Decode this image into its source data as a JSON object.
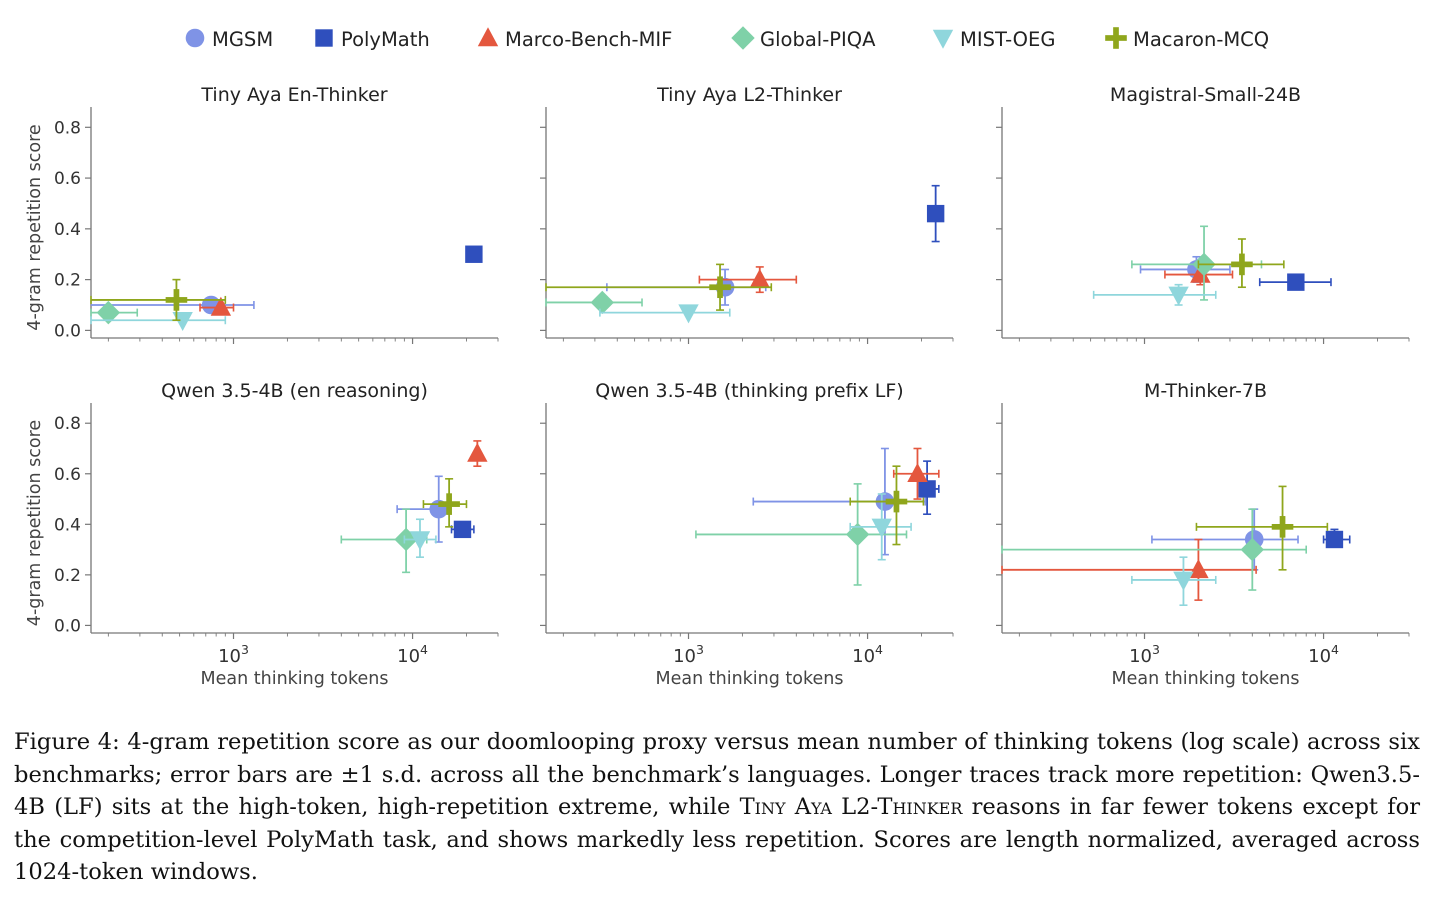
{
  "figure": {
    "legend": [
      {
        "name": "MGSM",
        "color": "#7f93e6",
        "marker": "circle"
      },
      {
        "name": "PolyMath",
        "color": "#2f4fbd",
        "marker": "square"
      },
      {
        "name": "Marco-Bench-MIF",
        "color": "#e4573e",
        "marker": "triangle-up"
      },
      {
        "name": "Global-PIQA",
        "color": "#7fd1a8",
        "marker": "diamond"
      },
      {
        "name": "MIST-OEG",
        "color": "#8fd6dc",
        "marker": "triangle-down"
      },
      {
        "name": "Macaron-MCQ",
        "color": "#8fa61c",
        "marker": "plus"
      }
    ],
    "caption": {
      "lead": "Figure 4: 4-gram repetition score as our doomlooping proxy versus mean number of thinking tokens (log scale) across six benchmarks; error bars are ±1 s.d. across all the benchmark’s languages. Longer traces track more repetition: Qwen3.5-4B (LF) sits at the high-token, high-repetition extreme, while ",
      "model": "Tiny Aya L2-Thinker",
      "tail": " reasons in far fewer tokens except for the competition-level PolyMath task, and shows markedly less repetition. Scores are length normalized, averaged across 1024-token windows."
    }
  },
  "chart_data": [
    {
      "type": "scatter",
      "title": "Tiny Aya En-Thinker",
      "xlabel": "",
      "ylabel": "4-gram repetition score",
      "xscale": "log",
      "xlim": [
        160,
        30000
      ],
      "ylim": [
        -0.03,
        0.88
      ],
      "xticks": [],
      "yticks": [
        0.0,
        0.2,
        0.4,
        0.6,
        0.8
      ],
      "series": [
        {
          "name": "MGSM",
          "x": 750,
          "y": 0.1,
          "xerr": [
            120,
            1300
          ],
          "yerr": [
            0.08,
            0.13
          ]
        },
        {
          "name": "PolyMath",
          "x": 22000,
          "y": 0.3,
          "xerr": null,
          "yerr": null
        },
        {
          "name": "Marco-Bench-MIF",
          "x": 850,
          "y": 0.09,
          "xerr": [
            650,
            1000
          ],
          "yerr": null
        },
        {
          "name": "Global-PIQA",
          "x": 200,
          "y": 0.07,
          "xerr": [
            160,
            290
          ],
          "yerr": null
        },
        {
          "name": "MIST-OEG",
          "x": 520,
          "y": 0.04,
          "xerr": [
            160,
            900
          ],
          "yerr": null
        },
        {
          "name": "Macaron-MCQ",
          "x": 480,
          "y": 0.12,
          "xerr": [
            160,
            900
          ],
          "yerr": [
            0.04,
            0.2
          ]
        }
      ]
    },
    {
      "type": "scatter",
      "title": "Tiny Aya L2-Thinker",
      "xlabel": "",
      "ylabel": "",
      "xscale": "log",
      "xlim": [
        160,
        30000
      ],
      "ylim": [
        -0.03,
        0.88
      ],
      "xticks": [],
      "yticks": [],
      "series": [
        {
          "name": "MGSM",
          "x": 1600,
          "y": 0.17,
          "xerr": [
            350,
            2700
          ],
          "yerr": [
            0.1,
            0.24
          ]
        },
        {
          "name": "PolyMath",
          "x": 24000,
          "y": 0.46,
          "xerr": [
            23000,
            25000
          ],
          "yerr": [
            0.35,
            0.57
          ]
        },
        {
          "name": "Marco-Bench-MIF",
          "x": 2500,
          "y": 0.2,
          "xerr": [
            1150,
            4000
          ],
          "yerr": [
            0.15,
            0.25
          ]
        },
        {
          "name": "Global-PIQA",
          "x": 330,
          "y": 0.11,
          "xerr": [
            160,
            550
          ],
          "yerr": null
        },
        {
          "name": "MIST-OEG",
          "x": 1000,
          "y": 0.07,
          "xerr": [
            320,
            1700
          ],
          "yerr": null
        },
        {
          "name": "Macaron-MCQ",
          "x": 1500,
          "y": 0.17,
          "xerr": [
            160,
            2900
          ],
          "yerr": [
            0.08,
            0.26
          ]
        }
      ]
    },
    {
      "type": "scatter",
      "title": "Magistral-Small-24B",
      "xlabel": "",
      "ylabel": "",
      "xscale": "log",
      "xlim": [
        160,
        30000
      ],
      "ylim": [
        -0.03,
        0.88
      ],
      "xticks": [],
      "yticks": [],
      "series": [
        {
          "name": "MGSM",
          "x": 1950,
          "y": 0.24,
          "xerr": [
            950,
            3000
          ],
          "yerr": [
            0.19,
            0.29
          ]
        },
        {
          "name": "PolyMath",
          "x": 7000,
          "y": 0.19,
          "xerr": [
            4400,
            11000
          ],
          "yerr": null
        },
        {
          "name": "Marco-Bench-MIF",
          "x": 2050,
          "y": 0.22,
          "xerr": [
            1300,
            3100
          ],
          "yerr": [
            0.18,
            0.26
          ]
        },
        {
          "name": "Global-PIQA",
          "x": 2150,
          "y": 0.26,
          "xerr": [
            850,
            4500
          ],
          "yerr": [
            0.12,
            0.41
          ]
        },
        {
          "name": "MIST-OEG",
          "x": 1550,
          "y": 0.14,
          "xerr": [
            520,
            2500
          ],
          "yerr": [
            0.1,
            0.18
          ]
        },
        {
          "name": "Macaron-MCQ",
          "x": 3500,
          "y": 0.26,
          "xerr": [
            2000,
            6000
          ],
          "yerr": [
            0.17,
            0.36
          ]
        }
      ]
    },
    {
      "type": "scatter",
      "title": "Qwen 3.5-4B (en reasoning)",
      "xlabel": "Mean thinking tokens",
      "ylabel": "4-gram repetition score",
      "xscale": "log",
      "xlim": [
        160,
        30000
      ],
      "ylim": [
        -0.03,
        0.88
      ],
      "xticks": [
        "10^3",
        "10^4"
      ],
      "yticks": [
        0.0,
        0.2,
        0.4,
        0.6,
        0.8
      ],
      "series": [
        {
          "name": "MGSM",
          "x": 14000,
          "y": 0.46,
          "xerr": [
            8200,
            16000
          ],
          "yerr": [
            0.33,
            0.59
          ]
        },
        {
          "name": "PolyMath",
          "x": 19000,
          "y": 0.38,
          "xerr": [
            16500,
            22000
          ],
          "yerr": null
        },
        {
          "name": "Marco-Bench-MIF",
          "x": 23000,
          "y": 0.68,
          "xerr": null,
          "yerr": [
            0.63,
            0.73
          ]
        },
        {
          "name": "Global-PIQA",
          "x": 9200,
          "y": 0.34,
          "xerr": [
            4000,
            12000
          ],
          "yerr": [
            0.21,
            0.46
          ]
        },
        {
          "name": "MIST-OEG",
          "x": 11000,
          "y": 0.34,
          "xerr": [
            9000,
            13500
          ],
          "yerr": [
            0.27,
            0.42
          ]
        },
        {
          "name": "Macaron-MCQ",
          "x": 16000,
          "y": 0.48,
          "xerr": [
            11500,
            20000
          ],
          "yerr": [
            0.39,
            0.58
          ]
        }
      ]
    },
    {
      "type": "scatter",
      "title": "Qwen 3.5-4B (thinking prefix LF)",
      "xlabel": "Mean thinking tokens",
      "ylabel": "",
      "xscale": "log",
      "xlim": [
        160,
        30000
      ],
      "ylim": [
        -0.03,
        0.88
      ],
      "xticks": [
        "10^3",
        "10^4"
      ],
      "yticks": [],
      "series": [
        {
          "name": "MGSM",
          "x": 12500,
          "y": 0.49,
          "xerr": [
            2300,
            21000
          ],
          "yerr": [
            0.28,
            0.7
          ]
        },
        {
          "name": "PolyMath",
          "x": 21500,
          "y": 0.54,
          "xerr": [
            19500,
            25000
          ],
          "yerr": [
            0.44,
            0.65
          ]
        },
        {
          "name": "Marco-Bench-MIF",
          "x": 19000,
          "y": 0.6,
          "xerr": [
            14000,
            25000
          ],
          "yerr": [
            0.5,
            0.7
          ]
        },
        {
          "name": "Global-PIQA",
          "x": 8800,
          "y": 0.36,
          "xerr": [
            1100,
            16500
          ],
          "yerr": [
            0.16,
            0.56
          ]
        },
        {
          "name": "MIST-OEG",
          "x": 12000,
          "y": 0.39,
          "xerr": [
            8000,
            17500
          ],
          "yerr": [
            0.26,
            0.52
          ]
        },
        {
          "name": "Macaron-MCQ",
          "x": 14500,
          "y": 0.49,
          "xerr": [
            8000,
            20500
          ],
          "yerr": [
            0.32,
            0.63
          ]
        }
      ]
    },
    {
      "type": "scatter",
      "title": "M-Thinker-7B",
      "xlabel": "Mean thinking tokens",
      "ylabel": "",
      "xscale": "log",
      "xlim": [
        160,
        30000
      ],
      "ylim": [
        -0.03,
        0.88
      ],
      "xticks": [
        "10^3",
        "10^4"
      ],
      "yticks": [],
      "series": [
        {
          "name": "MGSM",
          "x": 4100,
          "y": 0.34,
          "xerr": [
            1100,
            7200
          ],
          "yerr": [
            0.22,
            0.46
          ]
        },
        {
          "name": "PolyMath",
          "x": 11500,
          "y": 0.34,
          "xerr": [
            10000,
            14000
          ],
          "yerr": [
            0.31,
            0.38
          ]
        },
        {
          "name": "Marco-Bench-MIF",
          "x": 2000,
          "y": 0.22,
          "xerr": [
            160,
            4200
          ],
          "yerr": [
            0.1,
            0.34
          ]
        },
        {
          "name": "Global-PIQA",
          "x": 4000,
          "y": 0.3,
          "xerr": [
            160,
            8000
          ],
          "yerr": [
            0.14,
            0.46
          ]
        },
        {
          "name": "MIST-OEG",
          "x": 1650,
          "y": 0.18,
          "xerr": [
            850,
            2500
          ],
          "yerr": [
            0.08,
            0.27
          ]
        },
        {
          "name": "Macaron-MCQ",
          "x": 5900,
          "y": 0.39,
          "xerr": [
            1950,
            10500
          ],
          "yerr": [
            0.22,
            0.55
          ]
        }
      ]
    }
  ]
}
